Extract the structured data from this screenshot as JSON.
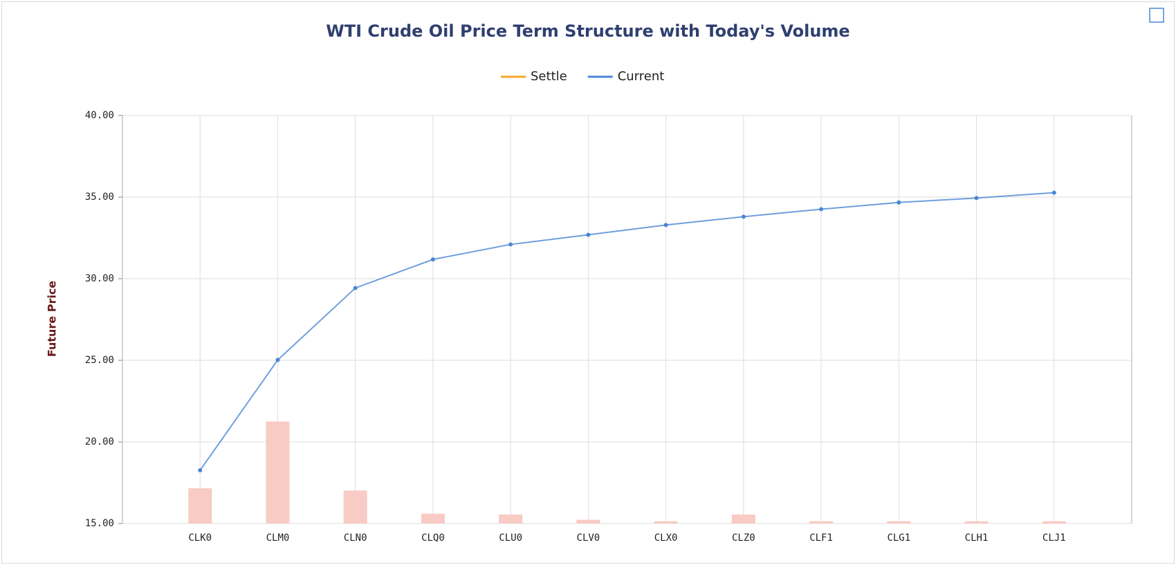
{
  "chart_data": {
    "type": "line",
    "title": "WTI Crude Oil Price Term Structure with Today's Volume",
    "y_label": "Future Price",
    "categories": [
      "CLK0",
      "CLM0",
      "CLN0",
      "CLQ0",
      "CLU0",
      "CLV0",
      "CLX0",
      "CLZ0",
      "CLF1",
      "CLG1",
      "CLH1",
      "CLJ1"
    ],
    "series": [
      {
        "name": "Settle",
        "color": "#f5a623",
        "values": [
          null,
          null,
          null,
          null,
          null,
          null,
          null,
          null,
          null,
          null,
          null,
          null
        ]
      },
      {
        "name": "Current",
        "color": "#4a86d4",
        "values": [
          18.26,
          25.02,
          29.43,
          31.18,
          32.1,
          32.69,
          33.29,
          33.8,
          34.26,
          34.67,
          34.94,
          35.27
        ]
      }
    ],
    "volume_bars": {
      "color": "#f8cbc4",
      "values": [
        17.16,
        21.25,
        17.02,
        15.6,
        15.55,
        15.23,
        15.14,
        15.55,
        15.14,
        15.14,
        15.14,
        15.14
      ]
    },
    "ylim": [
      15,
      40
    ],
    "yticks": [
      {
        "value": 15,
        "label": "15.00"
      },
      {
        "value": 20,
        "label": "20.00"
      },
      {
        "value": 25,
        "label": "25.00"
      },
      {
        "value": 30,
        "label": "30.00"
      },
      {
        "value": 35,
        "label": "35.00"
      },
      {
        "value": 40,
        "label": "40.00"
      }
    ],
    "grid": true
  }
}
